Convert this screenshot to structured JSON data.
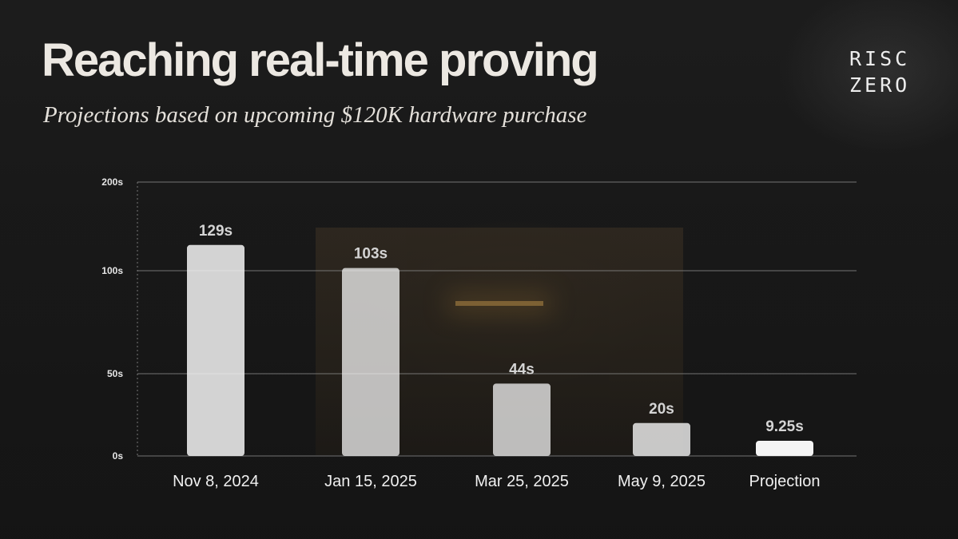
{
  "header": {
    "title": "Reaching real-time proving",
    "subtitle": "Projections based on upcoming $120K hardware purchase"
  },
  "logo": {
    "line1": "RISC",
    "line2": "ZERO"
  },
  "colors": {
    "bar": "#f4f4f4",
    "grid": "#8a8a8a",
    "text": "#ece8e2"
  },
  "chart_data": {
    "type": "bar",
    "categories": [
      "Nov 8, 2024",
      "Jan 15, 2025",
      "Mar 25, 2025",
      "May 9, 2025",
      "Projection"
    ],
    "values": [
      129,
      103,
      44,
      20,
      9.25
    ],
    "value_labels": [
      "129s",
      "103s",
      "44s",
      "20s",
      "9.25s"
    ],
    "y_ticks": [
      {
        "value": 0,
        "label": "0s"
      },
      {
        "value": 50,
        "label": "50s"
      },
      {
        "value": 100,
        "label": "100s"
      },
      {
        "value": 200,
        "label": "200s"
      }
    ],
    "ylim": [
      0,
      200
    ],
    "y_scale": "non-linear (0, 50, 100, 200 gridlines)",
    "grid": true,
    "legend": "none"
  }
}
